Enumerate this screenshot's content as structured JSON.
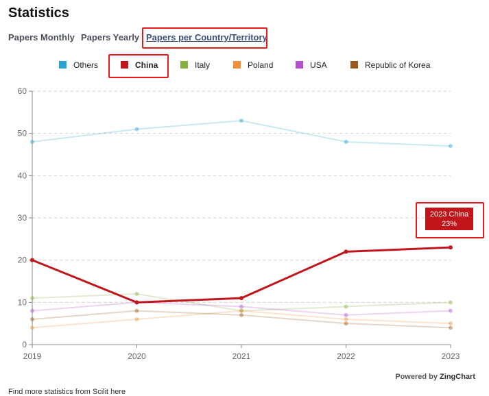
{
  "page": {
    "title": "Statistics"
  },
  "tabs": [
    {
      "label": "Papers Monthly"
    },
    {
      "label": "Papers Yearly"
    },
    {
      "label": "Papers per Country/Territory"
    }
  ],
  "chart_data": {
    "type": "line",
    "x": [
      "2019",
      "2020",
      "2021",
      "2022",
      "2023"
    ],
    "ylim": [
      0,
      60
    ],
    "yticks": [
      "0",
      "10",
      "20",
      "30",
      "40",
      "50",
      "60"
    ],
    "series": [
      {
        "name": "Others",
        "color": "#29a3d1",
        "values": [
          48,
          51,
          53,
          48,
          47
        ]
      },
      {
        "name": "China",
        "color": "#c0161b",
        "values": [
          20,
          10,
          11,
          22,
          23
        ]
      },
      {
        "name": "Italy",
        "color": "#84b13f",
        "values": [
          11,
          12,
          8,
          9,
          10
        ]
      },
      {
        "name": "Poland",
        "color": "#f0913a",
        "values": [
          4,
          6,
          8,
          6,
          5
        ]
      },
      {
        "name": "USA",
        "color": "#b450d0",
        "values": [
          8,
          10,
          9,
          7,
          8
        ]
      },
      {
        "name": "Republic of Korea",
        "color": "#9a5a1e",
        "values": [
          6,
          8,
          7,
          5,
          4
        ]
      }
    ],
    "highlighted_series": "China",
    "grid": true
  },
  "tooltip": {
    "line1": "2023 China",
    "line2": "23%"
  },
  "footer": {
    "powered_prefix": "Powered by",
    "powered_brand": "ZingChart",
    "note": "Find more statistics from Scilit here"
  }
}
